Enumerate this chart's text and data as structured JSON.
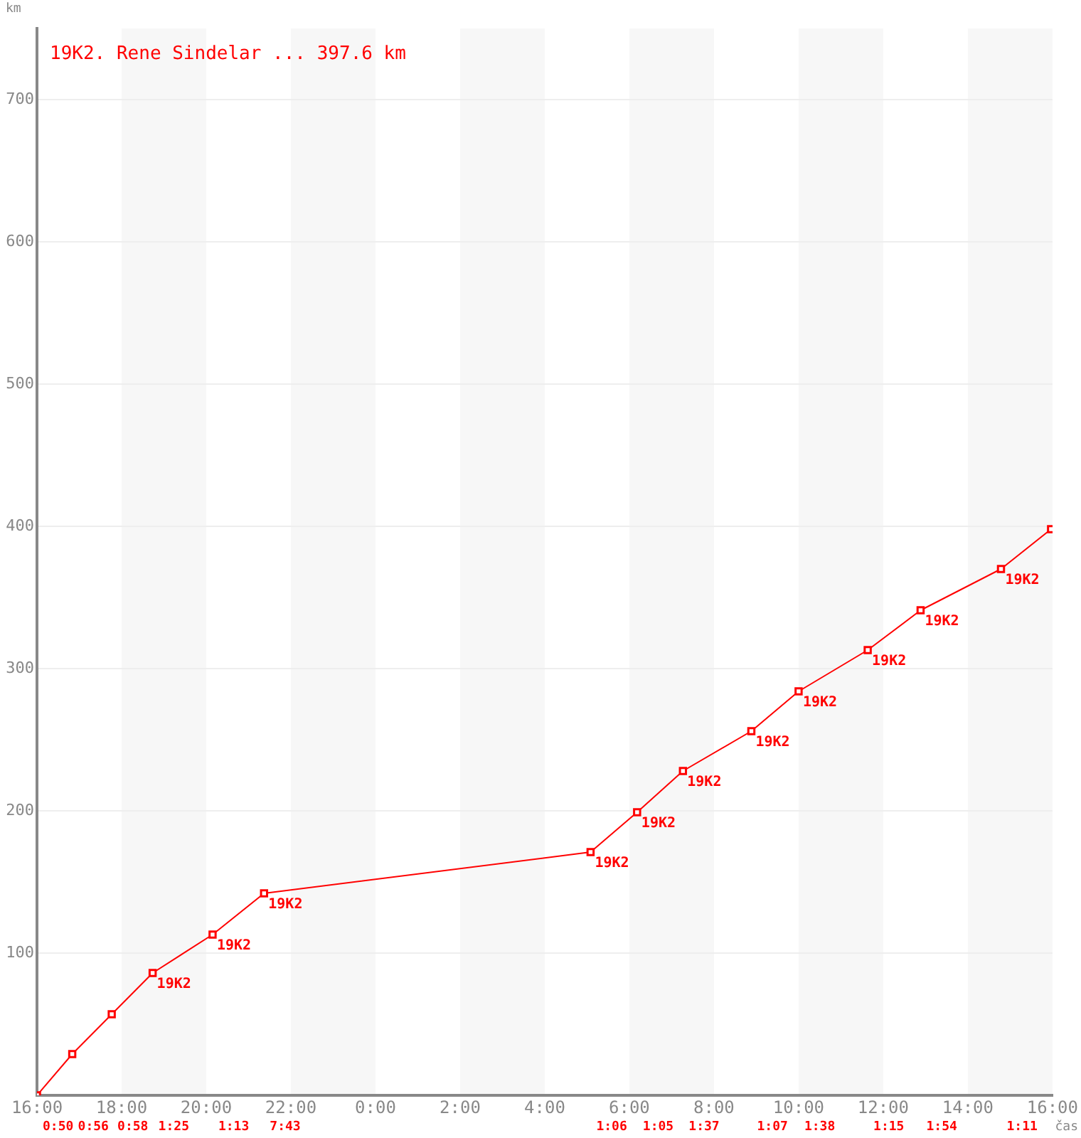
{
  "chart_data": {
    "type": "line",
    "title": "19K2. Rene Sindelar ... 397.6 km",
    "xlabel": "čas",
    "ylabel": "km",
    "x": [
      "2000-01-01T16:00",
      "2000-01-01T16:50",
      "2000-01-01T17:46",
      "2000-01-01T18:44",
      "2000-01-01T20:09",
      "2000-01-01T21:22",
      "2000-01-02T05:05",
      "2000-01-02T06:11",
      "2000-01-02T07:16",
      "2000-01-02T08:53",
      "2000-01-02T10:00",
      "2000-01-02T11:38",
      "2000-01-02T12:53",
      "2000-01-02T14:47",
      "2000-01-02T15:58"
    ],
    "series": [
      {
        "color": "#ff0000",
        "values": [
          0,
          29,
          57,
          86,
          113,
          142,
          171,
          199,
          228,
          256,
          284,
          313,
          341,
          370,
          398
        ]
      }
    ],
    "marker": "square",
    "line_style": "solid",
    "xlim": [
      "2000-01-01T16:00",
      "2000-01-02T16:00"
    ],
    "xticks": [
      {
        "value": "2000-01-01T16:00",
        "label": "16:00"
      },
      {
        "value": "2000-01-01T18:00",
        "label": "18:00"
      },
      {
        "value": "2000-01-01T20:00",
        "label": "20:00"
      },
      {
        "value": "2000-01-01T22:00",
        "label": "22:00"
      },
      {
        "value": "2000-01-02T00:00",
        "label": "0:00"
      },
      {
        "value": "2000-01-02T02:00",
        "label": "2:00"
      },
      {
        "value": "2000-01-02T04:00",
        "label": "4:00"
      },
      {
        "value": "2000-01-02T06:00",
        "label": "6:00"
      },
      {
        "value": "2000-01-02T08:00",
        "label": "8:00"
      },
      {
        "value": "2000-01-02T10:00",
        "label": "10:00"
      },
      {
        "value": "2000-01-02T12:00",
        "label": "12:00"
      },
      {
        "value": "2000-01-02T14:00",
        "label": "14:00"
      },
      {
        "value": "2000-01-02T16:00",
        "label": "16:00"
      }
    ],
    "ylim": [
      0,
      750
    ],
    "yticks": [
      100,
      200,
      300,
      400,
      500,
      600,
      700
    ],
    "grid": "y",
    "bands": [
      {
        "axis": "x",
        "from": "2000-01-01T18:00",
        "to": "2000-01-01T20:00",
        "color": "#f7f7f7"
      },
      {
        "axis": "x",
        "from": "2000-01-01T22:00",
        "to": "2000-01-02T00:00",
        "color": "#f7f7f7"
      },
      {
        "axis": "x",
        "from": "2000-01-02T02:00",
        "to": "2000-01-02T04:00",
        "color": "#f7f7f7"
      },
      {
        "axis": "x",
        "from": "2000-01-02T06:00",
        "to": "2000-01-02T08:00",
        "color": "#f7f7f7"
      },
      {
        "axis": "x",
        "from": "2000-01-02T10:00",
        "to": "2000-01-02T12:00",
        "color": "#f7f7f7"
      },
      {
        "axis": "x",
        "from": "2000-01-02T14:00",
        "to": "2000-01-02T16:00",
        "color": "#f7f7f7"
      }
    ],
    "annotations": [
      "0:50",
      "0:56",
      "0:58",
      "1:25",
      "1:13",
      "7:43",
      "1:06",
      "1:05",
      "1:37",
      "1:07",
      "1:38",
      "1:15",
      "1:54",
      "1:11",
      {
        "text": "19K2",
        "x": "2000-01-01T18:44",
        "y": 86
      },
      {
        "text": "19K2",
        "x": "2000-01-01T20:09",
        "y": 113
      },
      {
        "text": "19K2",
        "x": "2000-01-01T21:22",
        "y": 142
      },
      {
        "text": "19K2",
        "x": "2000-01-02T05:05",
        "y": 171
      },
      {
        "text": "19K2",
        "x": "2000-01-02T06:11",
        "y": 199
      },
      {
        "text": "19K2",
        "x": "2000-01-02T07:16",
        "y": 228
      },
      {
        "text": "19K2",
        "x": "2000-01-02T08:53",
        "y": 256
      },
      {
        "text": "19K2",
        "x": "2000-01-02T10:00",
        "y": 284
      },
      {
        "text": "19K2",
        "x": "2000-01-02T11:38",
        "y": 313
      },
      {
        "text": "19K2",
        "x": "2000-01-02T12:53",
        "y": 341
      },
      {
        "text": "19K2",
        "x": "2000-01-02T14:47",
        "y": 370
      }
    ]
  }
}
